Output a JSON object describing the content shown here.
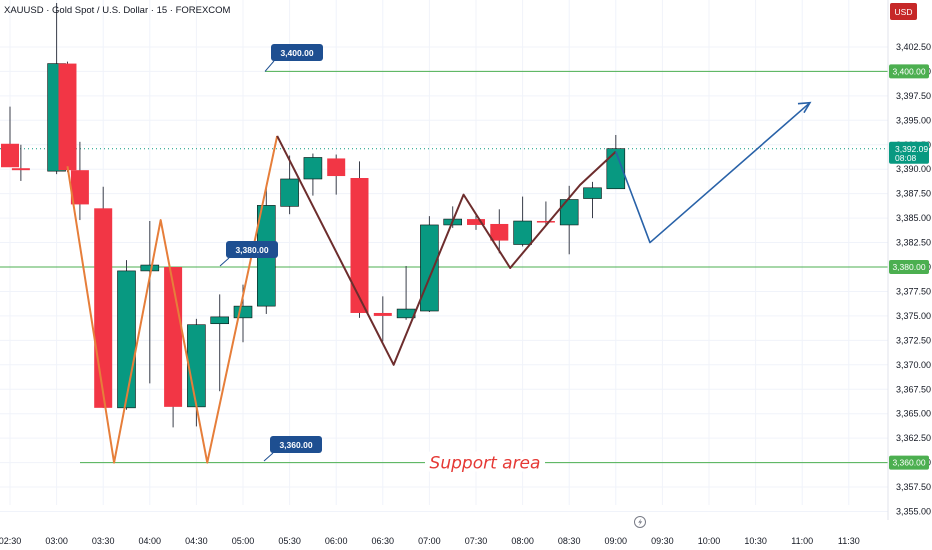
{
  "header": {
    "title": "XAUUSD · Gold Spot / U.S. Dollar · 15 · FOREXCOM",
    "currency_badge": "USD"
  },
  "chart_data": {
    "type": "candlestick",
    "symbol": "XAUUSD",
    "interval": "15",
    "ylim": [
      3354.0,
      3405.0
    ],
    "y_ticks": [
      "3,355.00",
      "3,357.50",
      "3,360.00",
      "3,362.50",
      "3,365.00",
      "3,367.50",
      "3,370.00",
      "3,372.50",
      "3,375.00",
      "3,377.50",
      "3,380.00",
      "3,382.50",
      "3,385.00",
      "3,387.50",
      "3,390.00",
      "3,392.50",
      "3,395.00",
      "3,397.50",
      "3,400.00",
      "3,402.50"
    ],
    "x_ticks": [
      "02:30",
      "03:00",
      "03:30",
      "04:00",
      "04:30",
      "05:00",
      "05:30",
      "06:00",
      "06:30",
      "07:00",
      "07:30",
      "08:00",
      "08:30",
      "09:00",
      "09:30",
      "10:00",
      "10:30",
      "11:00",
      "11:30"
    ],
    "colors": {
      "up": "#089981",
      "down": "#f23645",
      "grid": "#f0f3fa",
      "level_line": "#4caf50",
      "zigzag_orange": "#e67e3a",
      "zigzag_dark": "#6d2d2d",
      "projection": "#2962a8",
      "tag": "#1e4f91",
      "support_text": "#e53935",
      "price_marker": "#089981"
    },
    "candles": [
      {
        "time": "02:30",
        "o": 3392.6,
        "h": 3396.4,
        "l": 3390.3,
        "c": 3390.2
      },
      {
        "time": "02:37",
        "o": 3390.1,
        "h": 3392.5,
        "l": 3388.8,
        "c": 3389.9
      },
      {
        "time": "03:00",
        "o": 3389.8,
        "h": 3407.0,
        "l": 3389.5,
        "c": 3400.8
      },
      {
        "time": "03:07",
        "o": 3400.8,
        "h": 3401.0,
        "l": 3389.7,
        "c": 3389.9
      },
      {
        "time": "03:15",
        "o": 3389.9,
        "h": 3392.8,
        "l": 3384.8,
        "c": 3386.4
      },
      {
        "time": "03:30",
        "o": 3386.0,
        "h": 3388.2,
        "l": 3365.6,
        "c": 3365.6
      },
      {
        "time": "03:45",
        "o": 3365.6,
        "h": 3380.7,
        "l": 3365.4,
        "c": 3379.6
      },
      {
        "time": "04:00",
        "o": 3379.6,
        "h": 3384.7,
        "l": 3368.1,
        "c": 3380.2
      },
      {
        "time": "04:15",
        "o": 3380.0,
        "h": 3380.0,
        "l": 3363.6,
        "c": 3365.7
      },
      {
        "time": "04:30",
        "o": 3365.7,
        "h": 3374.7,
        "l": 3363.7,
        "c": 3374.1
      },
      {
        "time": "04:45",
        "o": 3374.2,
        "h": 3377.2,
        "l": 3367.3,
        "c": 3374.9
      },
      {
        "time": "05:00",
        "o": 3374.8,
        "h": 3378.2,
        "l": 3372.3,
        "c": 3376.0
      },
      {
        "time": "05:15",
        "o": 3376.0,
        "h": 3388.1,
        "l": 3375.2,
        "c": 3386.3
      },
      {
        "time": "05:30",
        "o": 3386.2,
        "h": 3391.4,
        "l": 3385.4,
        "c": 3389.0
      },
      {
        "time": "05:45",
        "o": 3389.0,
        "h": 3391.6,
        "l": 3387.3,
        "c": 3391.2
      },
      {
        "time": "06:00",
        "o": 3391.1,
        "h": 3391.5,
        "l": 3387.4,
        "c": 3389.3
      },
      {
        "time": "06:15",
        "o": 3389.1,
        "h": 3390.8,
        "l": 3374.8,
        "c": 3375.3
      },
      {
        "time": "06:30",
        "o": 3375.3,
        "h": 3377.0,
        "l": 3372.4,
        "c": 3375.0
      },
      {
        "time": "06:45",
        "o": 3374.8,
        "h": 3380.1,
        "l": 3374.6,
        "c": 3375.7
      },
      {
        "time": "07:00",
        "o": 3375.5,
        "h": 3385.2,
        "l": 3375.4,
        "c": 3384.3
      },
      {
        "time": "07:15",
        "o": 3384.3,
        "h": 3386.2,
        "l": 3384.0,
        "c": 3384.9
      },
      {
        "time": "07:30",
        "o": 3384.9,
        "h": 3385.4,
        "l": 3383.8,
        "c": 3384.3
      },
      {
        "time": "07:45",
        "o": 3384.4,
        "h": 3385.9,
        "l": 3381.4,
        "c": 3382.7
      },
      {
        "time": "08:00",
        "o": 3382.3,
        "h": 3387.2,
        "l": 3382.1,
        "c": 3384.7
      },
      {
        "time": "08:15",
        "o": 3384.7,
        "h": 3386.7,
        "l": 3384.2,
        "c": 3384.6
      },
      {
        "time": "08:30",
        "o": 3384.3,
        "h": 3388.3,
        "l": 3381.3,
        "c": 3386.9
      },
      {
        "time": "08:45",
        "o": 3387.0,
        "h": 3388.7,
        "l": 3385.0,
        "c": 3388.1
      },
      {
        "time": "09:00",
        "o": 3388.0,
        "h": 3393.5,
        "l": 3388.0,
        "c": 3392.1
      }
    ],
    "levels": [
      {
        "label": "3,400.00",
        "value": 3400.0
      },
      {
        "label": "3,380.00",
        "value": 3380.0
      },
      {
        "label": "3,360.00",
        "value": 3360.0
      }
    ],
    "current_price": {
      "label": "3,392.09",
      "value": 3392.09,
      "countdown": "08:08"
    },
    "annotation": "Support area",
    "zigzag_orange": [
      {
        "time": "03:07",
        "value": 3390.3
      },
      {
        "time": "03:37",
        "value": 3360.0
      },
      {
        "time": "04:07",
        "value": 3384.8
      },
      {
        "time": "04:37",
        "value": 3360.0
      },
      {
        "time": "05:22",
        "value": 3393.4
      }
    ],
    "zigzag_dark": [
      {
        "time": "05:22",
        "value": 3393.4
      },
      {
        "time": "06:37",
        "value": 3370.0
      },
      {
        "time": "07:22",
        "value": 3387.4
      },
      {
        "time": "07:52",
        "value": 3379.9
      },
      {
        "time": "08:37",
        "value": 3388.4
      },
      {
        "time": "09:00",
        "value": 3391.8
      }
    ],
    "projection": [
      {
        "time": "09:00",
        "value": 3391.8
      },
      {
        "time": "09:22",
        "value": 3382.5
      },
      {
        "time": "11:05",
        "value": 3396.8
      }
    ]
  }
}
